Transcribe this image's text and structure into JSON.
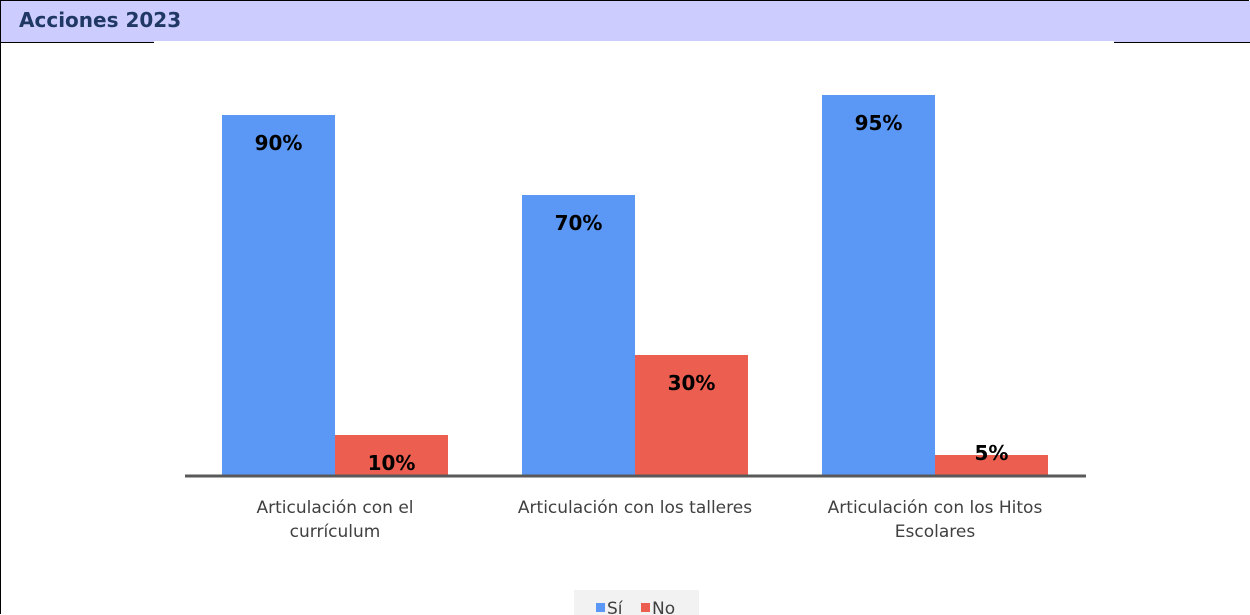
{
  "header": {
    "title": "Acciones 2023"
  },
  "chart_data": {
    "type": "bar",
    "title": "",
    "xlabel": "",
    "ylabel": "",
    "ylim": [
      0,
      100
    ],
    "grid": false,
    "legend_position": "bottom",
    "categories": [
      [
        "Articulación con el",
        "currículum"
      ],
      [
        "Articulación con los talleres"
      ],
      [
        "Articulación con los Hitos",
        "Escolares"
      ]
    ],
    "series": [
      {
        "name": "Sí",
        "color": "#5b97f5",
        "values": [
          90,
          70,
          95
        ],
        "labels": [
          "90%",
          "70%",
          "95%"
        ]
      },
      {
        "name": "No",
        "color": "#ec5f50",
        "values": [
          10,
          30,
          5
        ],
        "labels": [
          "10%",
          "30%",
          "5%"
        ]
      }
    ],
    "axis_color": "#595959"
  }
}
